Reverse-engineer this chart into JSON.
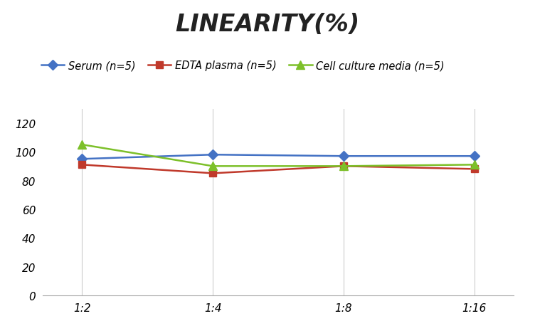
{
  "title": "LINEARITY(%)",
  "x_labels": [
    "1:2",
    "1:4",
    "1:8",
    "1:16"
  ],
  "x_positions": [
    0,
    1,
    2,
    3
  ],
  "series": [
    {
      "label": "Serum (n=5)",
      "values": [
        95,
        98,
        97,
        97
      ],
      "color": "#4472C4",
      "marker": "D",
      "markersize": 7,
      "linewidth": 1.8
    },
    {
      "label": "EDTA plasma (n=5)",
      "values": [
        91,
        85,
        90,
        88
      ],
      "color": "#C0392B",
      "marker": "s",
      "markersize": 7,
      "linewidth": 1.8
    },
    {
      "label": "Cell culture media (n=5)",
      "values": [
        105,
        90,
        90,
        91
      ],
      "color": "#7DC02A",
      "marker": "^",
      "markersize": 9,
      "linewidth": 1.8
    }
  ],
  "ylim": [
    0,
    130
  ],
  "yticks": [
    0,
    20,
    40,
    60,
    80,
    100,
    120
  ],
  "grid_color": "#CCCCCC",
  "background_color": "#FFFFFF",
  "title_fontsize": 24,
  "title_fontstyle": "italic",
  "title_fontweight": "bold",
  "legend_fontsize": 10.5,
  "tick_fontsize": 11
}
